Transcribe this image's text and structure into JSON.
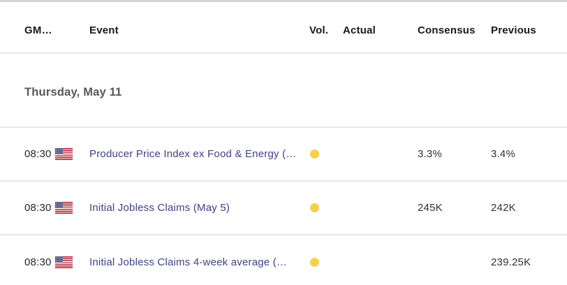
{
  "colors": {
    "event_link": "#3e4286",
    "volatility_dot": "#f6d04d",
    "header_text": "#17191e",
    "section_text": "#585858",
    "time_text": "#23252d",
    "value_text": "#2f323b",
    "divider": "#e7e7e7",
    "top_border": "#d2d2d2",
    "flag_red": "#b22234",
    "flag_blue": "#3c3b6e"
  },
  "table": {
    "columns": {
      "gmt": "GM…",
      "event": "Event",
      "vol": "Vol.",
      "actual": "Actual",
      "consensus": "Consensus",
      "previous": "Previous"
    },
    "section_header": "Thursday, May 11",
    "rows": [
      {
        "time": "08:30",
        "flag": "us",
        "event": "Producer Price Index ex Food & Energy (…",
        "volatility": "yellow-dot",
        "actual": "",
        "consensus": "3.3%",
        "previous": "3.4%"
      },
      {
        "time": "08:30",
        "flag": "us",
        "event": "Initial Jobless Claims (May 5)",
        "volatility": "yellow-dot",
        "actual": "",
        "consensus": "245K",
        "previous": "242K"
      },
      {
        "time": "08:30",
        "flag": "us",
        "event": "Initial Jobless Claims 4-week average (…",
        "volatility": "yellow-dot",
        "actual": "",
        "consensus": "",
        "previous": "239.25K"
      }
    ]
  }
}
